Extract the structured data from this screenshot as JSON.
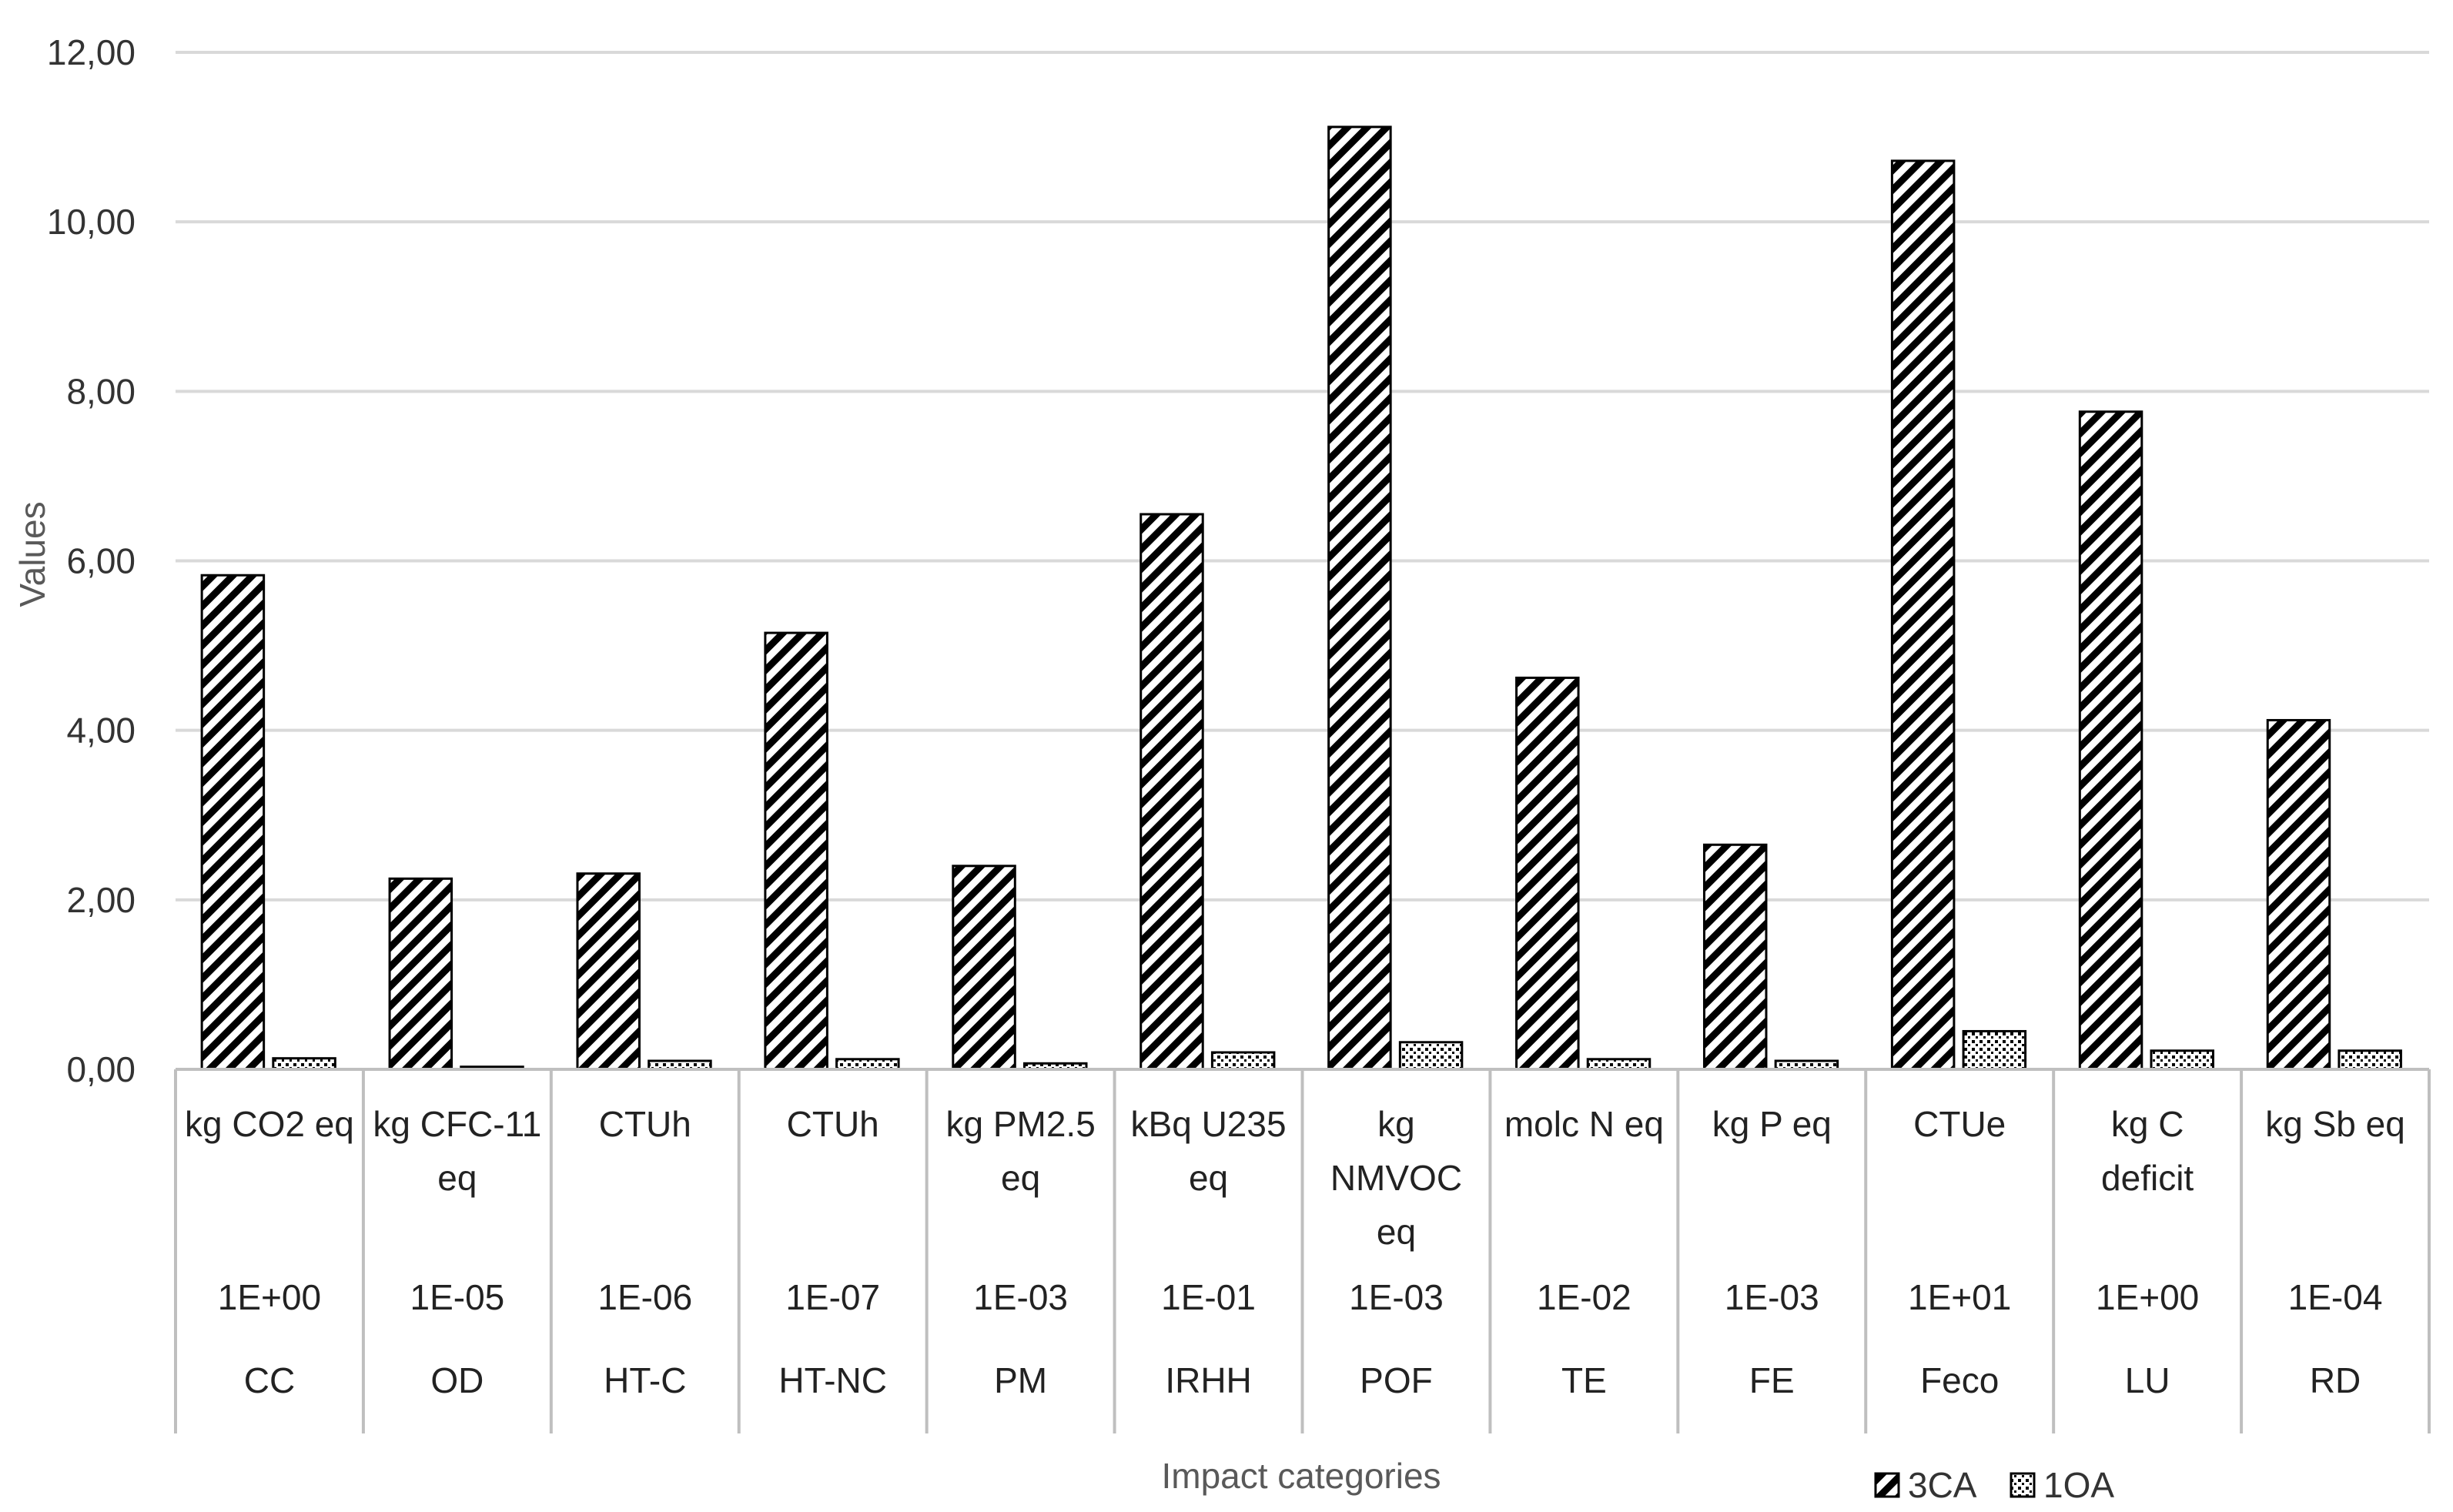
{
  "chart_data": {
    "type": "bar",
    "title": "",
    "xlabel": "Impact categories",
    "ylabel": "Values",
    "ylim": [
      0,
      12
    ],
    "y_ticks": [
      "0,00",
      "2,00",
      "4,00",
      "6,00",
      "8,00",
      "10,00",
      "12,00"
    ],
    "grid": true,
    "legend_position": "bottom-right",
    "categories": [
      {
        "unit_lines": [
          "kg CO2 eq"
        ],
        "scale": "1E+00",
        "code": "CC"
      },
      {
        "unit_lines": [
          "kg CFC-11",
          "eq"
        ],
        "scale": "1E-05",
        "code": "OD"
      },
      {
        "unit_lines": [
          "CTUh"
        ],
        "scale": "1E-06",
        "code": "HT-C"
      },
      {
        "unit_lines": [
          "CTUh"
        ],
        "scale": "1E-07",
        "code": "HT-NC"
      },
      {
        "unit_lines": [
          "kg PM2.5",
          "eq"
        ],
        "scale": "1E-03",
        "code": "PM"
      },
      {
        "unit_lines": [
          "kBq U235",
          "eq"
        ],
        "scale": "1E-01",
        "code": "IRHH"
      },
      {
        "unit_lines": [
          "kg",
          "NMVOC",
          "eq"
        ],
        "scale": "1E-03",
        "code": "POF"
      },
      {
        "unit_lines": [
          "molc N eq"
        ],
        "scale": "1E-02",
        "code": "TE"
      },
      {
        "unit_lines": [
          "kg P eq"
        ],
        "scale": "1E-03",
        "code": "FE"
      },
      {
        "unit_lines": [
          "CTUe"
        ],
        "scale": "1E+01",
        "code": "Feco"
      },
      {
        "unit_lines": [
          "kg C",
          "deficit"
        ],
        "scale": "1E+00",
        "code": "LU"
      },
      {
        "unit_lines": [
          "kg Sb eq"
        ],
        "scale": "1E-04",
        "code": "RD"
      }
    ],
    "series": [
      {
        "name": "3CA",
        "pattern": "diagonal-hatch",
        "values": [
          5.83,
          2.25,
          2.31,
          5.15,
          2.4,
          6.55,
          11.12,
          4.62,
          2.65,
          10.72,
          7.76,
          4.12
        ]
      },
      {
        "name": "1OA",
        "pattern": "dotted",
        "values": [
          0.13,
          0.03,
          0.1,
          0.12,
          0.07,
          0.2,
          0.32,
          0.12,
          0.1,
          0.45,
          0.22,
          0.22
        ]
      }
    ],
    "colors": {
      "bar_stroke": "#000000",
      "grid": "#d9d9d9",
      "axis": "#bfbfbf"
    }
  }
}
